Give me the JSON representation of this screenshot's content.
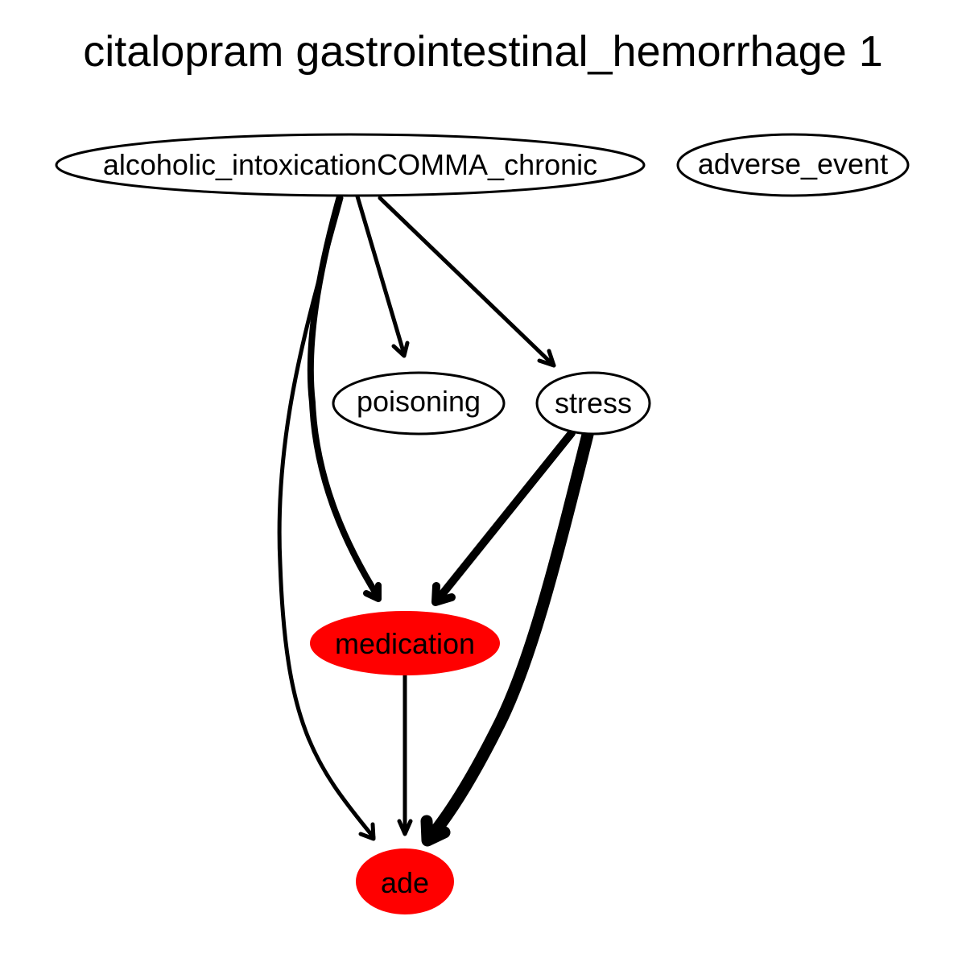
{
  "title": "citalopram gastrointestinal_hemorrhage 1",
  "colors": {
    "highlight_fill": "#ff0000",
    "default_fill": "#ffffff",
    "stroke": "#000000"
  },
  "nodes": [
    {
      "id": "alcoholic",
      "label": "alcoholic_intoxicationCOMMA_chronic",
      "highlighted": false
    },
    {
      "id": "adverse_event",
      "label": "adverse_event",
      "highlighted": false
    },
    {
      "id": "poisoning",
      "label": "poisoning",
      "highlighted": false
    },
    {
      "id": "stress",
      "label": "stress",
      "highlighted": false
    },
    {
      "id": "medication",
      "label": "medication",
      "highlighted": true
    },
    {
      "id": "ade",
      "label": "ade",
      "highlighted": true
    }
  ],
  "edges": [
    {
      "from": "alcoholic_intoxicationCOMMA_chronic",
      "to": "poisoning"
    },
    {
      "from": "alcoholic_intoxicationCOMMA_chronic",
      "to": "stress"
    },
    {
      "from": "alcoholic_intoxicationCOMMA_chronic",
      "to": "medication"
    },
    {
      "from": "alcoholic_intoxicationCOMMA_chronic",
      "to": "ade"
    },
    {
      "from": "stress",
      "to": "medication"
    },
    {
      "from": "stress",
      "to": "ade"
    },
    {
      "from": "medication",
      "to": "ade"
    }
  ]
}
